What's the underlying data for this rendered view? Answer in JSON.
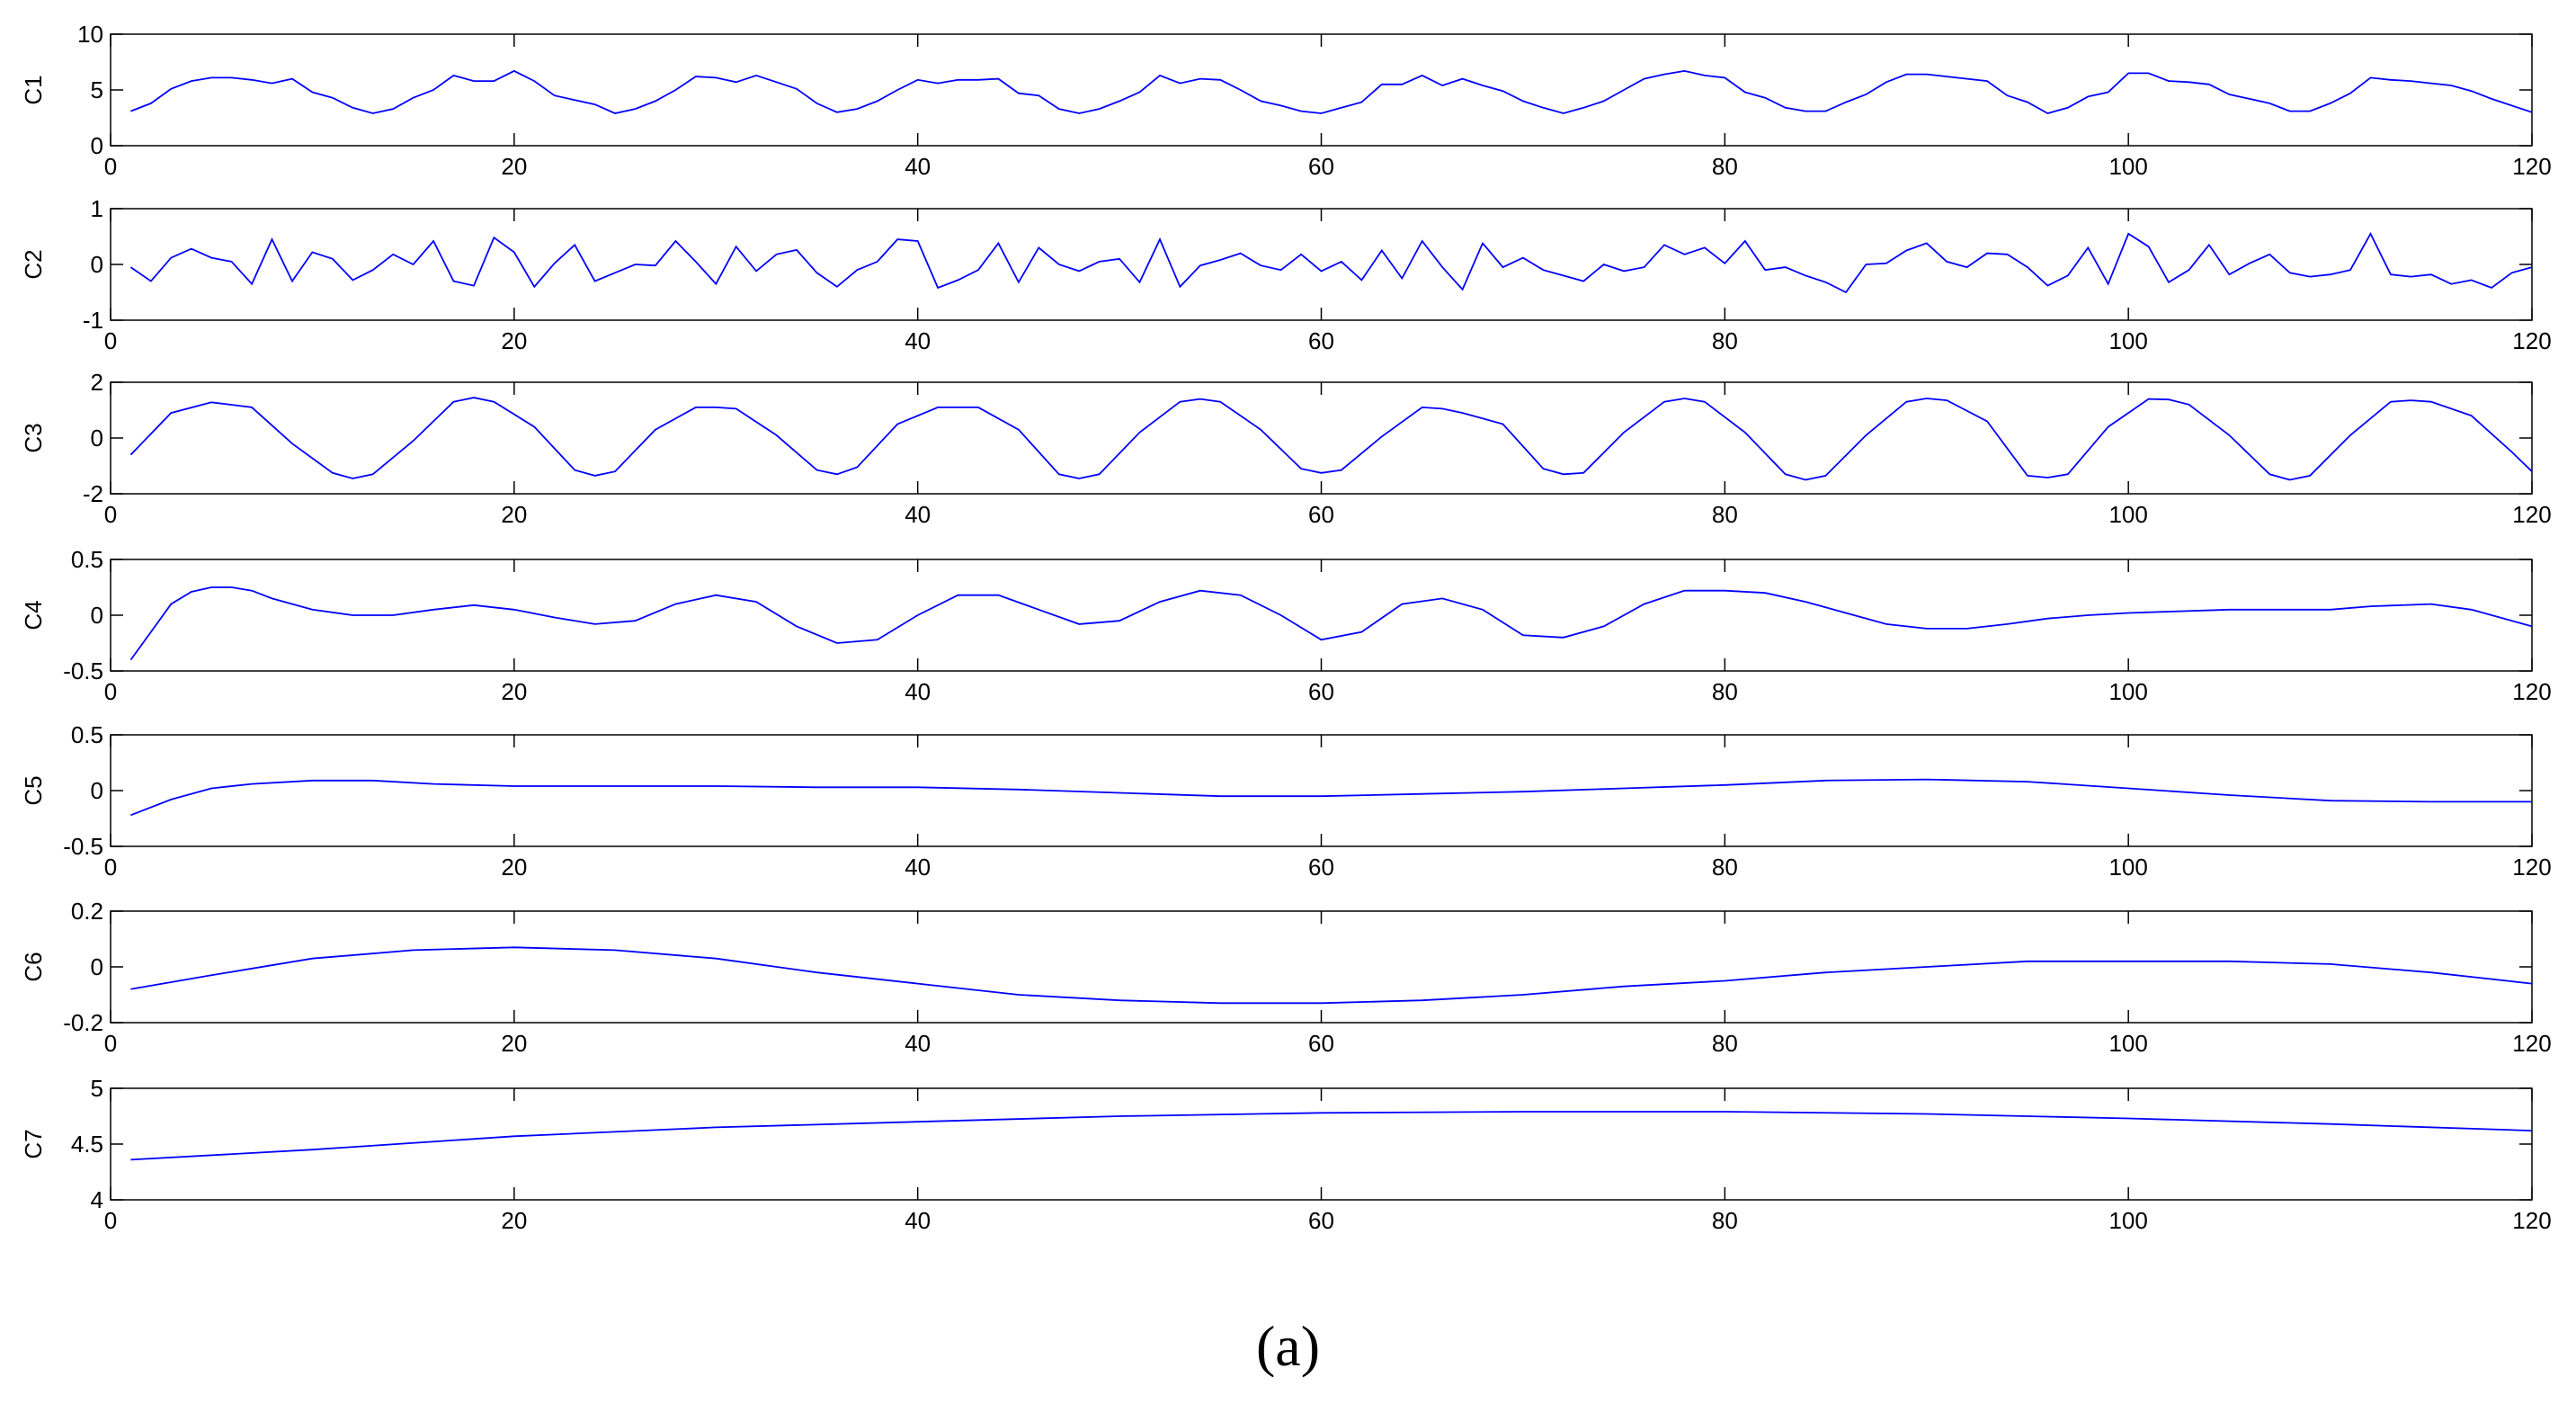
{
  "caption": "(a)",
  "chart_data": [
    {
      "type": "line",
      "ylabel": "C1",
      "xlim": [
        0,
        120
      ],
      "ylim": [
        0,
        10
      ],
      "xticks": [
        "0",
        "20",
        "40",
        "60",
        "80",
        "100",
        "120"
      ],
      "yticks": [
        "0",
        "5",
        "10"
      ],
      "color": "#0000ff",
      "series": [
        {
          "x": [
            1,
            2,
            3,
            4,
            5,
            6,
            7,
            8,
            9,
            10,
            11,
            12,
            13,
            14,
            15,
            16,
            17,
            18,
            19,
            20,
            21,
            22,
            23,
            24,
            25,
            26,
            27,
            28,
            29,
            30,
            31,
            32,
            33,
            34,
            35,
            36,
            37,
            38,
            39,
            40,
            41,
            42,
            43,
            44,
            45,
            46,
            47,
            48,
            49,
            50,
            51,
            52,
            53,
            54,
            55,
            56,
            57,
            58,
            59,
            60,
            61,
            62,
            63,
            64,
            65,
            66,
            67,
            68,
            69,
            70,
            71,
            72,
            73,
            74,
            75,
            76,
            77,
            78,
            79,
            80,
            81,
            82,
            83,
            84,
            85,
            86,
            87,
            88,
            89,
            90,
            91,
            92,
            93,
            94,
            95,
            96,
            97,
            98,
            99,
            100,
            101,
            102,
            103,
            104,
            105,
            106,
            107,
            108,
            109,
            110,
            111,
            112,
            113,
            114,
            115,
            116,
            117,
            118,
            119,
            120
          ],
          "values": [
            3.1,
            3.8,
            5.1,
            5.8,
            6.1,
            6.1,
            5.9,
            5.6,
            6.0,
            4.8,
            4.3,
            3.4,
            2.9,
            3.3,
            4.3,
            5.0,
            6.3,
            5.8,
            5.8,
            6.7,
            5.8,
            4.5,
            4.1,
            3.7,
            2.9,
            3.3,
            4.0,
            5.0,
            6.2,
            6.1,
            5.7,
            6.3,
            5.7,
            5.1,
            3.8,
            3.0,
            3.3,
            4.0,
            5.0,
            5.9,
            5.6,
            5.9,
            5.9,
            6.0,
            4.7,
            4.5,
            3.3,
            2.9,
            3.3,
            4.0,
            4.8,
            6.3,
            5.6,
            6.0,
            5.9,
            5.0,
            4.0,
            3.6,
            3.1,
            2.9,
            3.4,
            3.9,
            5.5,
            5.5,
            6.3,
            5.4,
            6.0,
            5.4,
            4.9,
            4.0,
            3.4,
            2.9,
            3.4,
            4.0,
            5.0,
            6.0,
            6.4,
            6.7,
            6.3,
            6.1,
            4.8,
            4.3,
            3.4,
            3.1,
            3.1,
            3.9,
            4.6,
            5.7,
            6.4,
            6.4,
            6.2,
            6.0,
            5.8,
            4.5,
            3.9,
            2.9,
            3.4,
            4.4,
            4.8,
            6.5,
            6.5,
            5.8,
            5.7,
            5.5,
            4.6,
            4.2,
            3.8,
            3.1,
            3.1,
            3.8,
            4.7,
            6.1,
            5.9,
            5.8,
            5.6,
            5.4,
            4.9,
            4.2,
            3.6,
            3.0
          ]
        }
      ]
    },
    {
      "type": "line",
      "ylabel": "C2",
      "xlim": [
        0,
        120
      ],
      "ylim": [
        -1,
        1
      ],
      "xticks": [
        "0",
        "20",
        "40",
        "60",
        "80",
        "100",
        "120"
      ],
      "yticks": [
        "-1",
        "0",
        "1"
      ],
      "color": "#0000ff",
      "series": [
        {
          "x": [
            1,
            2,
            3,
            4,
            5,
            6,
            7,
            8,
            9,
            10,
            11,
            12,
            13,
            14,
            15,
            16,
            17,
            18,
            19,
            20,
            21,
            22,
            23,
            24,
            25,
            26,
            27,
            28,
            29,
            30,
            31,
            32,
            33,
            34,
            35,
            36,
            37,
            38,
            39,
            40,
            41,
            42,
            43,
            44,
            45,
            46,
            47,
            48,
            49,
            50,
            51,
            52,
            53,
            54,
            55,
            56,
            57,
            58,
            59,
            60,
            61,
            62,
            63,
            64,
            65,
            66,
            67,
            68,
            69,
            70,
            71,
            72,
            73,
            74,
            75,
            76,
            77,
            78,
            79,
            80,
            81,
            82,
            83,
            84,
            85,
            86,
            87,
            88,
            89,
            90,
            91,
            92,
            93,
            94,
            95,
            96,
            97,
            98,
            99,
            100,
            101,
            102,
            103,
            104,
            105,
            106,
            107,
            108,
            109,
            110,
            111,
            112,
            113,
            114,
            115,
            116,
            117,
            118,
            119,
            120
          ],
          "values": [
            -0.05,
            -0.3,
            0.12,
            0.28,
            0.12,
            0.05,
            -0.35,
            0.45,
            -0.3,
            0.22,
            0.1,
            -0.28,
            -0.1,
            0.18,
            0.0,
            0.42,
            -0.3,
            -0.38,
            0.48,
            0.22,
            -0.4,
            0.02,
            0.35,
            -0.3,
            -0.15,
            0.0,
            -0.02,
            0.42,
            0.05,
            -0.35,
            0.32,
            -0.12,
            0.18,
            0.26,
            -0.15,
            -0.4,
            -0.1,
            0.05,
            0.45,
            0.42,
            -0.42,
            -0.28,
            -0.1,
            0.38,
            -0.32,
            0.3,
            0.0,
            -0.12,
            0.05,
            0.1,
            -0.32,
            0.45,
            -0.4,
            -0.02,
            0.08,
            0.2,
            -0.02,
            -0.1,
            0.18,
            -0.12,
            0.05,
            -0.28,
            0.25,
            -0.25,
            0.42,
            -0.05,
            -0.45,
            0.38,
            -0.05,
            0.12,
            -0.1,
            -0.2,
            -0.3,
            0.0,
            -0.12,
            -0.05,
            0.35,
            0.18,
            0.3,
            0.02,
            0.42,
            -0.1,
            -0.05,
            -0.2,
            -0.32,
            -0.5,
            0.0,
            0.02,
            0.25,
            0.38,
            0.05,
            -0.05,
            0.2,
            0.18,
            -0.05,
            -0.38,
            -0.2,
            0.3,
            -0.35,
            0.55,
            0.32,
            -0.32,
            -0.1,
            0.35,
            -0.18,
            0.02,
            0.18,
            -0.15,
            -0.22,
            -0.18,
            -0.1,
            0.55,
            -0.18,
            -0.22,
            -0.18,
            -0.35,
            -0.28,
            -0.42,
            -0.15,
            -0.05
          ]
        }
      ]
    },
    {
      "type": "line",
      "ylabel": "C3",
      "xlim": [
        0,
        120
      ],
      "ylim": [
        -2,
        2
      ],
      "xticks": [
        "0",
        "20",
        "40",
        "60",
        "80",
        "100",
        "120"
      ],
      "yticks": [
        "-2",
        "0",
        "2"
      ],
      "color": "#0000ff",
      "series": [
        {
          "x": [
            1,
            3,
            5,
            7,
            9,
            11,
            12,
            13,
            15,
            17,
            18,
            19,
            21,
            23,
            24,
            25,
            27,
            29,
            30,
            31,
            33,
            35,
            36,
            37,
            39,
            41,
            43,
            45,
            47,
            48,
            49,
            51,
            53,
            54,
            55,
            57,
            59,
            60,
            61,
            63,
            65,
            66,
            67,
            69,
            71,
            72,
            73,
            75,
            77,
            78,
            79,
            81,
            83,
            84,
            85,
            87,
            89,
            90,
            91,
            93,
            95,
            96,
            97,
            99,
            101,
            102,
            103,
            105,
            107,
            108,
            109,
            111,
            113,
            114,
            115,
            117,
            119,
            120
          ],
          "values": [
            -0.6,
            0.9,
            1.28,
            1.1,
            -0.2,
            -1.25,
            -1.45,
            -1.3,
            -0.1,
            1.3,
            1.45,
            1.3,
            0.4,
            -1.15,
            -1.35,
            -1.2,
            0.3,
            1.1,
            1.1,
            1.05,
            0.1,
            -1.15,
            -1.3,
            -1.05,
            0.5,
            1.1,
            1.1,
            0.3,
            -1.3,
            -1.45,
            -1.3,
            0.2,
            1.3,
            1.4,
            1.3,
            0.3,
            -1.1,
            -1.25,
            -1.15,
            0.05,
            1.1,
            1.05,
            0.9,
            0.5,
            -1.1,
            -1.3,
            -1.25,
            0.2,
            1.3,
            1.42,
            1.3,
            0.2,
            -1.3,
            -1.5,
            -1.35,
            0.1,
            1.3,
            1.42,
            1.35,
            0.6,
            -1.35,
            -1.42,
            -1.3,
            0.4,
            1.4,
            1.38,
            1.2,
            0.1,
            -1.3,
            -1.5,
            -1.35,
            0.1,
            1.3,
            1.35,
            1.3,
            0.8,
            -0.5,
            -1.2
          ]
        }
      ]
    },
    {
      "type": "line",
      "ylabel": "C4",
      "xlim": [
        0,
        120
      ],
      "ylim": [
        -0.5,
        0.5
      ],
      "xticks": [
        "0",
        "20",
        "40",
        "60",
        "80",
        "100",
        "120"
      ],
      "yticks": [
        "-0.5",
        "0",
        "0.5"
      ],
      "color": "#0000ff",
      "series": [
        {
          "x": [
            1,
            2,
            3,
            4,
            5,
            6,
            7,
            8,
            10,
            12,
            14,
            16,
            18,
            20,
            22,
            24,
            26,
            28,
            30,
            32,
            34,
            36,
            38,
            40,
            42,
            44,
            46,
            48,
            50,
            52,
            54,
            56,
            58,
            60,
            62,
            64,
            66,
            68,
            70,
            72,
            74,
            76,
            78,
            80,
            82,
            84,
            86,
            88,
            90,
            92,
            94,
            96,
            98,
            100,
            105,
            110,
            112,
            115,
            117,
            120
          ],
          "values": [
            -0.4,
            -0.15,
            0.1,
            0.21,
            0.25,
            0.25,
            0.22,
            0.15,
            0.05,
            0.0,
            0.0,
            0.05,
            0.09,
            0.05,
            -0.02,
            -0.08,
            -0.05,
            0.1,
            0.18,
            0.12,
            -0.1,
            -0.25,
            -0.22,
            0.0,
            0.18,
            0.18,
            0.05,
            -0.08,
            -0.05,
            0.12,
            0.22,
            0.18,
            0.0,
            -0.22,
            -0.15,
            0.1,
            0.15,
            0.05,
            -0.18,
            -0.2,
            -0.1,
            0.1,
            0.22,
            0.22,
            0.2,
            0.12,
            0.02,
            -0.08,
            -0.12,
            -0.12,
            -0.08,
            -0.03,
            0.0,
            0.02,
            0.05,
            0.05,
            0.08,
            0.1,
            0.05,
            -0.1
          ]
        }
      ]
    },
    {
      "type": "line",
      "ylabel": "C5",
      "xlim": [
        0,
        120
      ],
      "ylim": [
        -0.5,
        0.5
      ],
      "xticks": [
        "0",
        "20",
        "40",
        "60",
        "80",
        "100",
        "120"
      ],
      "yticks": [
        "-0.5",
        "0",
        "0.5"
      ],
      "color": "#0000ff",
      "series": [
        {
          "x": [
            1,
            3,
            5,
            7,
            10,
            13,
            16,
            20,
            25,
            30,
            35,
            40,
            45,
            50,
            55,
            60,
            65,
            70,
            75,
            80,
            85,
            90,
            95,
            100,
            105,
            110,
            115,
            120
          ],
          "values": [
            -0.22,
            -0.08,
            0.02,
            0.06,
            0.09,
            0.09,
            0.06,
            0.04,
            0.04,
            0.04,
            0.03,
            0.03,
            0.01,
            -0.02,
            -0.05,
            -0.05,
            -0.03,
            -0.01,
            0.02,
            0.05,
            0.09,
            0.1,
            0.08,
            0.02,
            -0.04,
            -0.09,
            -0.1,
            -0.1
          ]
        }
      ]
    },
    {
      "type": "line",
      "ylabel": "C6",
      "xlim": [
        0,
        120
      ],
      "ylim": [
        -0.2,
        0.2
      ],
      "xticks": [
        "0",
        "20",
        "40",
        "60",
        "80",
        "100",
        "120"
      ],
      "yticks": [
        "-0.2",
        "0",
        "0.2"
      ],
      "color": "#0000ff",
      "series": [
        {
          "x": [
            1,
            5,
            10,
            15,
            20,
            25,
            30,
            35,
            40,
            45,
            50,
            55,
            60,
            65,
            70,
            75,
            80,
            85,
            90,
            95,
            100,
            105,
            110,
            115,
            120
          ],
          "values": [
            -0.08,
            -0.03,
            0.03,
            0.06,
            0.07,
            0.06,
            0.03,
            -0.02,
            -0.06,
            -0.1,
            -0.12,
            -0.13,
            -0.13,
            -0.12,
            -0.1,
            -0.07,
            -0.05,
            -0.02,
            0.0,
            0.02,
            0.02,
            0.02,
            0.01,
            -0.02,
            -0.06
          ]
        }
      ]
    },
    {
      "type": "line",
      "ylabel": "C7",
      "xlim": [
        0,
        120
      ],
      "ylim": [
        4,
        5
      ],
      "xticks": [
        "0",
        "20",
        "40",
        "60",
        "80",
        "100",
        "120"
      ],
      "yticks": [
        "4",
        "4.5",
        "5"
      ],
      "color": "#0000ff",
      "series": [
        {
          "x": [
            1,
            10,
            20,
            30,
            40,
            50,
            60,
            70,
            80,
            90,
            100,
            110,
            120
          ],
          "values": [
            4.36,
            4.45,
            4.57,
            4.65,
            4.7,
            4.75,
            4.78,
            4.79,
            4.79,
            4.77,
            4.73,
            4.68,
            4.62
          ]
        }
      ]
    }
  ]
}
